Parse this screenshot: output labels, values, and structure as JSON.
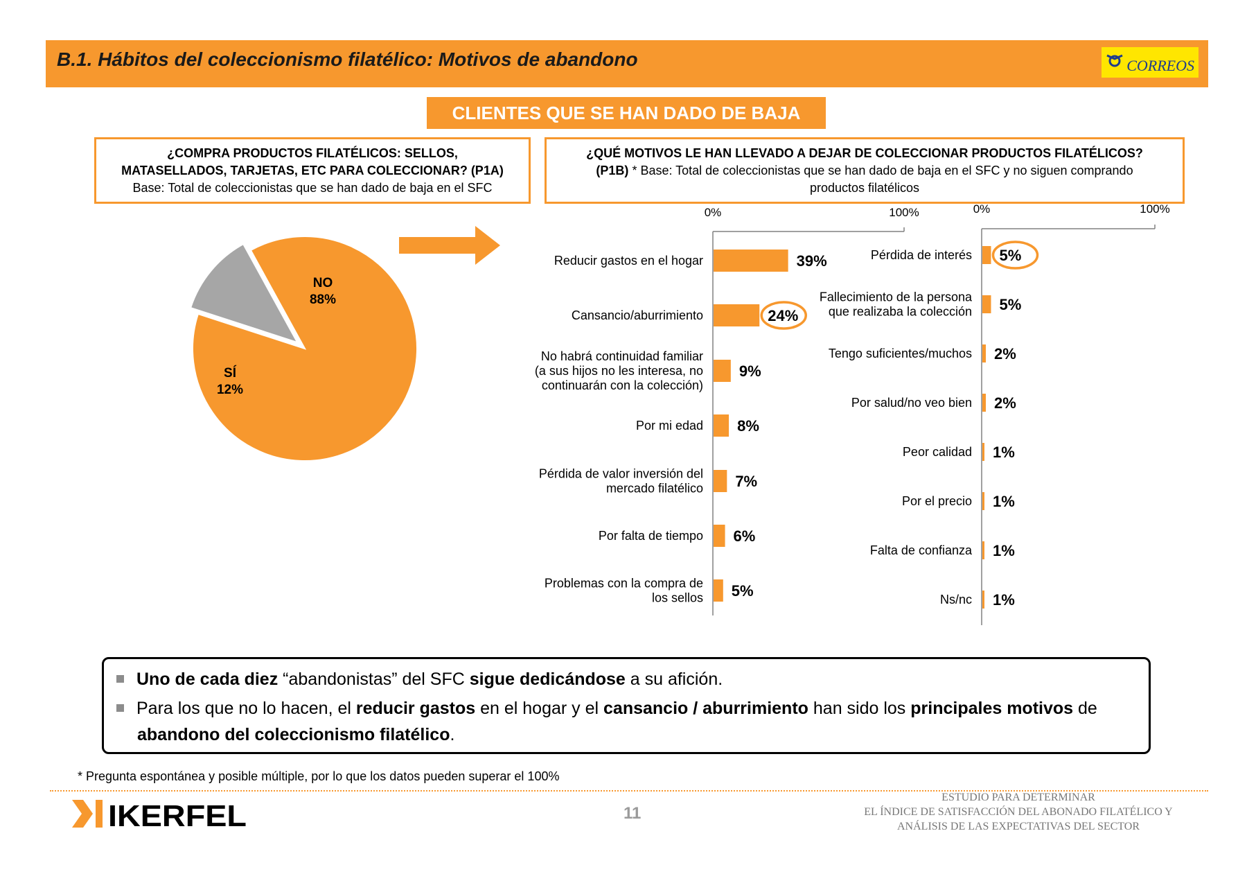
{
  "header": {
    "title": "B.1. Hábitos del coleccionismo filatélico: Motivos de abandono",
    "logo_text": "CORREOS"
  },
  "banner": "CLIENTES QUE SE HAN DADO DE BAJA",
  "question1": {
    "line1": "¿COMPRA PRODUCTOS FILATÉLICOS: SELLOS,",
    "line2": "MATASELLADOS, TARJETAS, ETC PARA COLECCIONAR? (P1A)",
    "base": "Base: Total de coleccionistas que se han dado de baja en el SFC"
  },
  "question2": {
    "line1": "¿QUÉ MOTIVOS LE HAN LLEVADO A DEJAR DE COLECCIONAR PRODUCTOS FILATÉLICOS?",
    "code": "(P1B)",
    "base_a": " * Base: Total de coleccionistas que se han dado de baja en el SFC y no siguen comprando",
    "base_b": "productos filatélicos"
  },
  "colors": {
    "orange": "#F7982E",
    "gray": "#A6A6A6",
    "circle": "#F7982E"
  },
  "chart_data": [
    {
      "type": "pie",
      "slices": [
        {
          "label": "NO",
          "value": 88,
          "value_label": "88%",
          "color": "#F7982E"
        },
        {
          "label": "SÍ",
          "value": 12,
          "value_label": "12%",
          "color": "#A6A6A6"
        }
      ]
    },
    {
      "type": "bar",
      "orientation": "horizontal",
      "axis_labels": [
        "0%",
        "100%"
      ],
      "xlim": [
        0,
        100
      ],
      "categories": [
        [
          "Reducir gastos en el hogar"
        ],
        [
          "Cansancio/aburrimiento"
        ],
        [
          "No habrá continuidad familiar",
          "(a sus hijos no les interesa, no",
          "continuarán con la colección)"
        ],
        [
          "Por mi edad"
        ],
        [
          "Pérdida de valor inversión del",
          "mercado filatélico"
        ],
        [
          "Por falta de tiempo"
        ],
        [
          "Problemas con la compra de",
          "los sellos"
        ]
      ],
      "values": [
        39,
        24,
        9,
        8,
        7,
        6,
        5
      ],
      "value_labels": [
        "39%",
        "24%",
        "9%",
        "8%",
        "7%",
        "6%",
        "5%"
      ],
      "highlighted": [
        1
      ]
    },
    {
      "type": "bar",
      "orientation": "horizontal",
      "axis_labels": [
        "0%",
        "100%"
      ],
      "xlim": [
        0,
        100
      ],
      "categories": [
        [
          "Pérdida de interés"
        ],
        [
          "Fallecimiento de la persona",
          "que realizaba la colección"
        ],
        [
          "Tengo suficientes/muchos"
        ],
        [
          "Por salud/no veo bien"
        ],
        [
          "Peor calidad"
        ],
        [
          "Por el precio"
        ],
        [
          "Falta de confianza"
        ],
        [
          "Ns/nc"
        ]
      ],
      "values": [
        5,
        5,
        2,
        2,
        1,
        1,
        1,
        1
      ],
      "value_labels": [
        "5%",
        "5%",
        "2%",
        "2%",
        "1%",
        "1%",
        "1%",
        "1%"
      ],
      "highlighted": [
        0
      ]
    }
  ],
  "note": {
    "b1": [
      {
        "t": "Uno de cada diez",
        "b": true
      },
      {
        "t": " “abandonistas” del SFC ",
        "b": false
      },
      {
        "t": "sigue dedicándose",
        "b": true
      },
      {
        "t": " a su afición.",
        "b": false
      }
    ],
    "b2": [
      {
        "t": "Para los que no lo hacen, el ",
        "b": false
      },
      {
        "t": "reducir gastos",
        "b": true
      },
      {
        "t": " en el hogar y el ",
        "b": false
      },
      {
        "t": "cansancio / aburrimiento",
        "b": true
      },
      {
        "t": " han sido los ",
        "b": false
      },
      {
        "t": "principales motivos",
        "b": true
      },
      {
        "t": " de ",
        "b": false
      },
      {
        "t": "abandono del coleccionismo filatélico",
        "b": true
      },
      {
        "t": ".",
        "b": false
      }
    ]
  },
  "footnote": "* Pregunta espontánea y posible múltiple, por lo que los datos pueden superar el 100%",
  "footer": {
    "brand": "IKERFEL",
    "page_number": "11",
    "study_line1": "ESTUDIO PARA DETERMINAR",
    "study_line2": "EL ÍNDICE DE SATISFACCIÓN DEL ABONADO FILATÉLICO Y",
    "study_line3": "ANÁLISIS DE LAS EXPECTATIVAS DEL SECTOR"
  }
}
